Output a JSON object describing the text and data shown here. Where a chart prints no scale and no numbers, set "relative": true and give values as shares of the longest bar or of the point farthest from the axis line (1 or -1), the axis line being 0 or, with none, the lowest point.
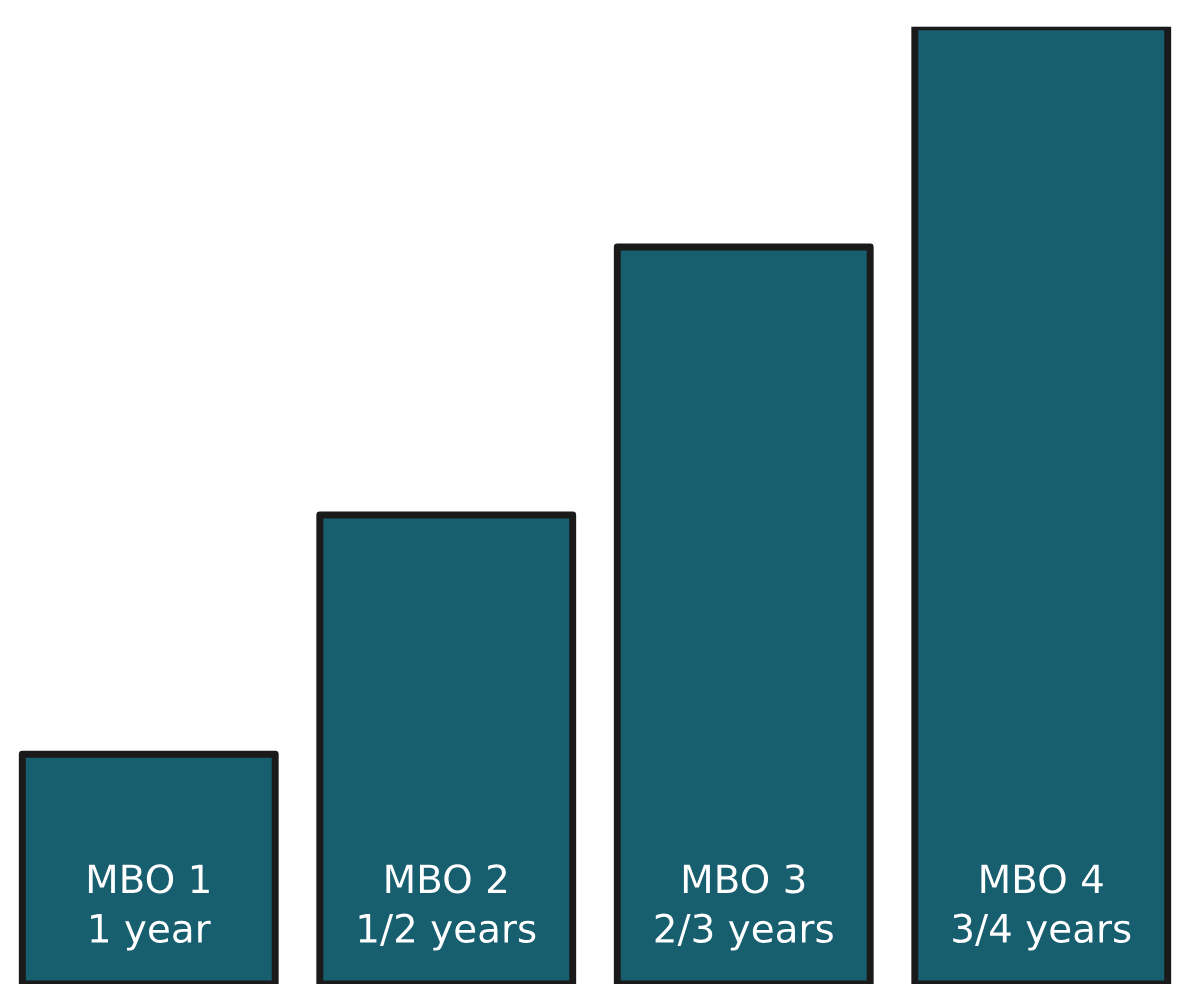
{
  "chart_data": {
    "type": "bar",
    "relative": true,
    "categories": [
      "MBO 1\n1 year",
      "MBO 2\n1/2 years",
      "MBO 3\n2/3 years",
      "MBO 4\n3/4 years"
    ],
    "values": [
      0.24,
      0.49,
      0.77,
      1
    ],
    "color": "#175e6e"
  }
}
